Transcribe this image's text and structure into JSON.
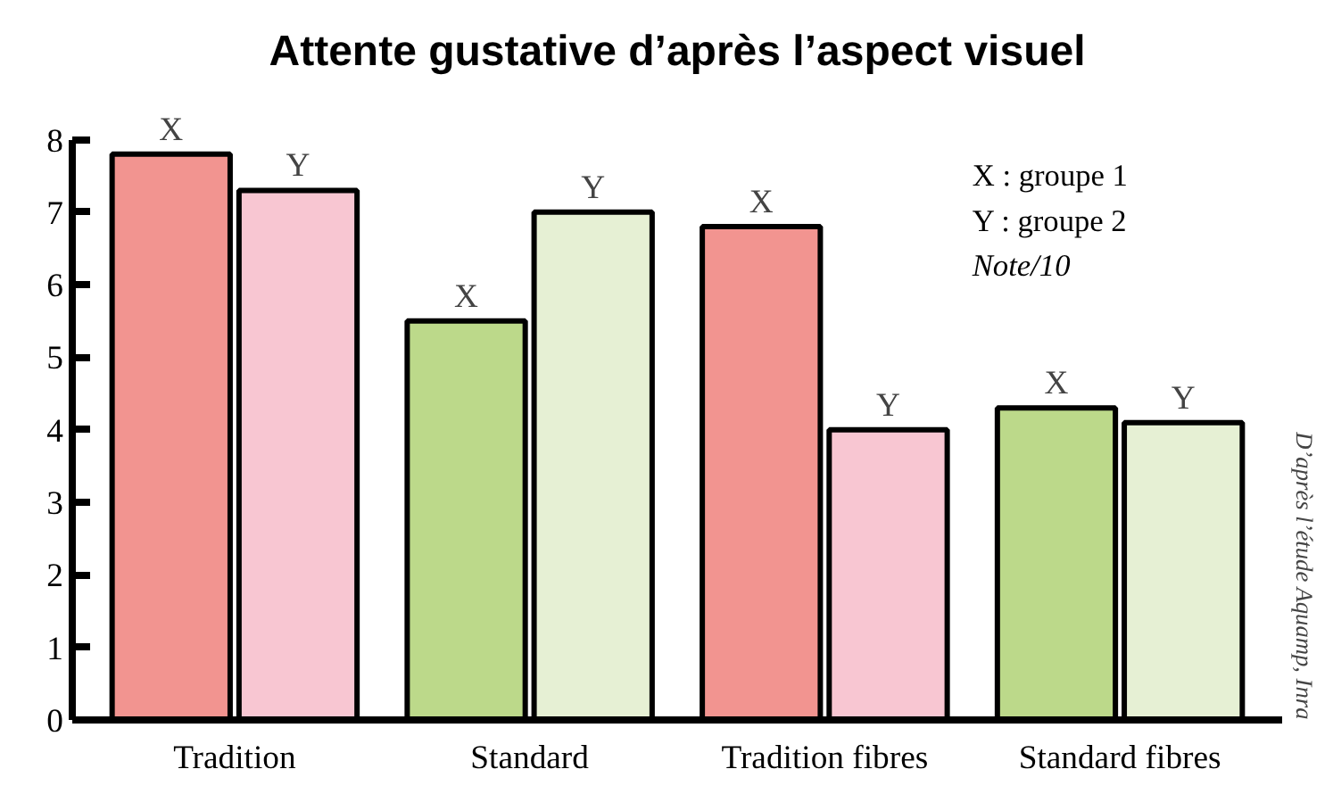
{
  "chart_data": {
    "type": "bar",
    "title": "Attente gustative d’après l’aspect visuel",
    "categories": [
      "Tradition",
      "Standard",
      "Tradition fibres",
      "Standard fibres"
    ],
    "series": [
      {
        "name": "X",
        "colors": [
          "#f29490",
          "#bcd98a",
          "#f29490",
          "#bcd98a"
        ],
        "values": [
          7.8,
          5.5,
          6.8,
          4.3
        ]
      },
      {
        "name": "Y",
        "colors": [
          "#f8c6d2",
          "#e6f0d4",
          "#f8c6d2",
          "#e6f0d4"
        ],
        "values": [
          7.3,
          7.0,
          4.0,
          4.1
        ]
      }
    ],
    "ylim": [
      0,
      8
    ],
    "yticks": [
      0,
      1,
      2,
      3,
      4,
      5,
      6,
      7,
      8
    ],
    "grid": false,
    "annotations": [
      "X : groupe 1",
      "Y : groupe 2",
      "Note/10",
      "D’après l’étude Aquamp, Inra"
    ]
  }
}
